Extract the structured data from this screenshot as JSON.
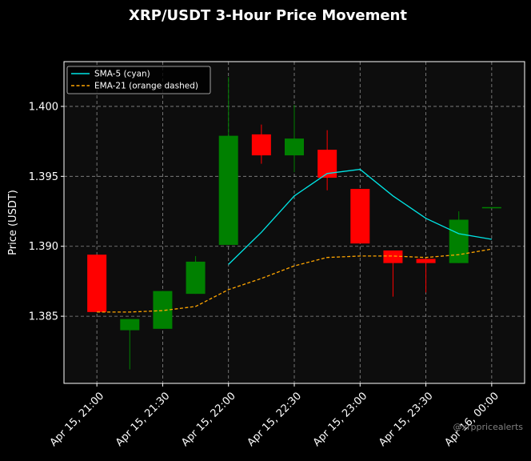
{
  "colors": {
    "background": "#000000",
    "plot_background": "#0d0d0d",
    "up": "#008000",
    "down": "#ff0000",
    "sma": "#00e5e5",
    "ema": "#ffa500",
    "grid": "#8c8c8c",
    "text": "#ffffff"
  },
  "watermark": "@xrppricealerts",
  "chart_data": {
    "type": "candlestick",
    "title": "XRP/USDT 3-Hour Price Movement",
    "xlabel": "",
    "ylabel": "Price (USDT)",
    "ylim": [
      1.3802,
      1.4032
    ],
    "xlim": [
      "Apr 15, 20:45",
      "Apr 16, 00:15"
    ],
    "y_ticks": [
      1.385,
      1.39,
      1.395,
      1.4
    ],
    "y_tick_labels": [
      "1.385",
      "1.390",
      "1.395",
      "1.400"
    ],
    "x_ticks": [
      "Apr 15, 21:00",
      "Apr 15, 21:30",
      "Apr 15, 22:00",
      "Apr 15, 22:30",
      "Apr 15, 23:00",
      "Apr 15, 23:30",
      "Apr 16, 00:00"
    ],
    "x_tick_labels": [
      "Apr 15, 21:00",
      "Apr 15, 21:30",
      "Apr 15, 22:00",
      "Apr 15, 22:30",
      "Apr 15, 23:00",
      "Apr 15, 23:30",
      "Apr 16, 00:00"
    ],
    "grid": true,
    "legend_position": "top-left",
    "candles": [
      {
        "time": "Apr 15, 21:00",
        "open": 1.3894,
        "high": 1.3894,
        "low": 1.3853,
        "close": 1.3853
      },
      {
        "time": "Apr 15, 21:15",
        "open": 1.384,
        "high": 1.3848,
        "low": 1.3812,
        "close": 1.3848
      },
      {
        "time": "Apr 15, 21:30",
        "open": 1.3841,
        "high": 1.3868,
        "low": 1.3841,
        "close": 1.3868
      },
      {
        "time": "Apr 15, 21:45",
        "open": 1.3866,
        "high": 1.3893,
        "low": 1.3866,
        "close": 1.3889
      },
      {
        "time": "Apr 15, 22:00",
        "open": 1.3901,
        "high": 1.4021,
        "low": 1.3901,
        "close": 1.3979
      },
      {
        "time": "Apr 15, 22:15",
        "open": 1.398,
        "high": 1.3987,
        "low": 1.3959,
        "close": 1.3965
      },
      {
        "time": "Apr 15, 22:30",
        "open": 1.3965,
        "high": 1.4001,
        "low": 1.3953,
        "close": 1.3977
      },
      {
        "time": "Apr 15, 22:45",
        "open": 1.3969,
        "high": 1.3983,
        "low": 1.394,
        "close": 1.3949
      },
      {
        "time": "Apr 15, 23:00",
        "open": 1.3941,
        "high": 1.3941,
        "low": 1.3902,
        "close": 1.3902
      },
      {
        "time": "Apr 15, 23:15",
        "open": 1.3897,
        "high": 1.3897,
        "low": 1.3864,
        "close": 1.3888
      },
      {
        "time": "Apr 15, 23:30",
        "open": 1.3891,
        "high": 1.3891,
        "low": 1.3867,
        "close": 1.3888
      },
      {
        "time": "Apr 15, 23:45",
        "open": 1.3888,
        "high": 1.3925,
        "low": 1.3888,
        "close": 1.3919
      },
      {
        "time": "Apr 16, 00:00",
        "open": 1.3928,
        "high": 1.3928,
        "low": 1.3928,
        "close": 1.3928
      }
    ],
    "series": [
      {
        "name": "SMA-5 (cyan)",
        "style": "solid",
        "x": [
          "Apr 15, 22:00",
          "Apr 15, 22:15",
          "Apr 15, 22:30",
          "Apr 15, 22:45",
          "Apr 15, 23:00",
          "Apr 15, 23:15",
          "Apr 15, 23:30",
          "Apr 15, 23:45",
          "Apr 16, 00:00"
        ],
        "values": [
          1.3887,
          1.391,
          1.3936,
          1.3952,
          1.3955,
          1.3936,
          1.392,
          1.3909,
          1.3905
        ]
      },
      {
        "name": "EMA-21 (orange dashed)",
        "style": "dashed",
        "x": [
          "Apr 15, 21:00",
          "Apr 15, 21:15",
          "Apr 15, 21:30",
          "Apr 15, 21:45",
          "Apr 15, 22:00",
          "Apr 15, 22:15",
          "Apr 15, 22:30",
          "Apr 15, 22:45",
          "Apr 15, 23:00",
          "Apr 15, 23:15",
          "Apr 15, 23:30",
          "Apr 15, 23:45",
          "Apr 16, 00:00"
        ],
        "values": [
          1.3853,
          1.3853,
          1.3854,
          1.3857,
          1.3869,
          1.3877,
          1.3886,
          1.3892,
          1.3893,
          1.3893,
          1.3892,
          1.3894,
          1.3898
        ]
      }
    ]
  }
}
